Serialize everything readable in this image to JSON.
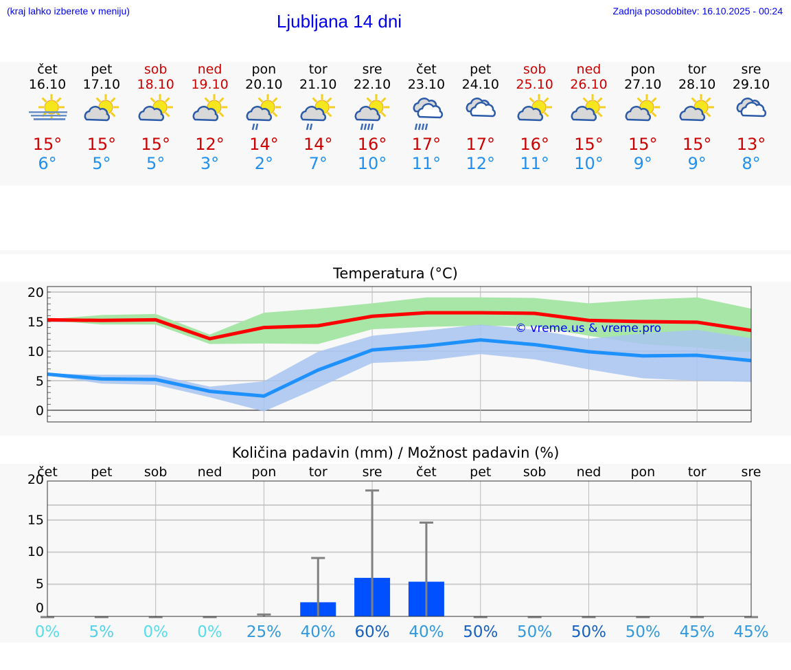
{
  "header": {
    "hint": "(kraj lahko izberete v meniju)",
    "title": "Ljubljana 14 dni",
    "updated": "Zadnja posodobitev: 16.10.2025 - 00:24"
  },
  "colors": {
    "max": "#ff0000",
    "min": "#1e90ff",
    "max_band": "#a8e6a8",
    "min_band": "#a8c4f0",
    "bar": "#0050ff",
    "error": "#808080",
    "weekend": "#cc0000"
  },
  "days": [
    {
      "name": "čet",
      "date": "16.10",
      "icon": "sun-fog-icon",
      "max": "15°",
      "min": "6°",
      "weekend": false
    },
    {
      "name": "pet",
      "date": "17.10",
      "icon": "partly-cloudy-icon",
      "max": "15°",
      "min": "5°",
      "weekend": false
    },
    {
      "name": "sob",
      "date": "18.10",
      "icon": "partly-cloudy-icon",
      "max": "15°",
      "min": "5°",
      "weekend": true
    },
    {
      "name": "ned",
      "date": "19.10",
      "icon": "partly-cloudy-icon",
      "max": "12°",
      "min": "3°",
      "weekend": true
    },
    {
      "name": "pon",
      "date": "20.10",
      "icon": "partly-cloudy-light-rain-icon",
      "max": "14°",
      "min": "2°",
      "weekend": false
    },
    {
      "name": "tor",
      "date": "21.10",
      "icon": "partly-cloudy-light-rain-icon",
      "max": "14°",
      "min": "7°",
      "weekend": false
    },
    {
      "name": "sre",
      "date": "22.10",
      "icon": "partly-cloudy-rain-icon",
      "max": "16°",
      "min": "10°",
      "weekend": false
    },
    {
      "name": "čet",
      "date": "23.10",
      "icon": "cloudy-rain-icon",
      "max": "17°",
      "min": "11°",
      "weekend": false
    },
    {
      "name": "pet",
      "date": "24.10",
      "icon": "cloudy-icon",
      "max": "17°",
      "min": "12°",
      "weekend": false
    },
    {
      "name": "sob",
      "date": "25.10",
      "icon": "partly-cloudy-icon",
      "max": "16°",
      "min": "11°",
      "weekend": true
    },
    {
      "name": "ned",
      "date": "26.10",
      "icon": "partly-cloudy-icon",
      "max": "15°",
      "min": "10°",
      "weekend": true
    },
    {
      "name": "pon",
      "date": "27.10",
      "icon": "partly-cloudy-icon",
      "max": "15°",
      "min": "9°",
      "weekend": false
    },
    {
      "name": "tor",
      "date": "28.10",
      "icon": "partly-cloudy-icon",
      "max": "15°",
      "min": "9°",
      "weekend": false
    },
    {
      "name": "sre",
      "date": "29.10",
      "icon": "cloudy-icon",
      "max": "13°",
      "min": "8°",
      "weekend": false
    }
  ],
  "chart_data": [
    {
      "type": "line",
      "title": "Temperatura (°C)",
      "ylim": [
        -2,
        21
      ],
      "yticks": [
        "0",
        "5",
        "10",
        "15",
        "20"
      ],
      "grid": true,
      "watermark": "© vreme.us & vreme.pro",
      "series": [
        {
          "values": [
            15.3,
            15.2,
            15.3,
            12.1,
            14.0,
            14.3,
            15.9,
            16.5,
            16.5,
            16.4,
            15.2,
            15.0,
            14.9,
            13.5
          ],
          "band_low": [
            15.2,
            14.5,
            14.5,
            11.2,
            11.3,
            11.2,
            13.7,
            14.1,
            14.3,
            14.2,
            12.6,
            11.2,
            10.6,
            9.8
          ],
          "band_high": [
            15.4,
            16.1,
            16.3,
            12.8,
            16.5,
            17.2,
            18.1,
            19.1,
            19.1,
            19.0,
            18.1,
            18.7,
            19.1,
            17.2
          ]
        },
        {
          "values": [
            6.1,
            5.3,
            5.2,
            3.2,
            2.4,
            6.8,
            10.2,
            10.9,
            11.9,
            11.1,
            9.9,
            9.2,
            9.3,
            8.4
          ],
          "band_low": [
            5.9,
            4.5,
            4.3,
            2.2,
            -0.2,
            3.8,
            8.0,
            8.4,
            9.5,
            8.6,
            6.9,
            5.4,
            5.0,
            4.8
          ],
          "band_high": [
            6.2,
            6.0,
            6.0,
            4.0,
            4.9,
            9.9,
            12.6,
            13.5,
            14.5,
            13.6,
            12.1,
            13.0,
            13.6,
            12.2
          ]
        }
      ]
    },
    {
      "type": "bar",
      "title": "Količina padavin (mm) / Možnost padavin (%)",
      "ylim": [
        0,
        21
      ],
      "yticks": [
        "0",
        "5",
        "10",
        "15",
        "20"
      ],
      "grid": true,
      "categories": [
        "čet",
        "pet",
        "sob",
        "ned",
        "pon",
        "tor",
        "sre",
        "čet",
        "pet",
        "sob",
        "ned",
        "pon",
        "tor",
        "sre"
      ],
      "values": [
        0,
        0,
        0,
        0,
        0,
        2.2,
        6.0,
        5.4,
        0,
        0,
        0,
        0,
        0,
        0
      ],
      "error_high": [
        0,
        0,
        0,
        0,
        0.4,
        9.2,
        19.7,
        14.7,
        0,
        0,
        0,
        0,
        0,
        0
      ],
      "probability": [
        "0%",
        "5%",
        "0%",
        "0%",
        "25%",
        "40%",
        "60%",
        "40%",
        "50%",
        "50%",
        "50%",
        "50%",
        "45%",
        "45%"
      ],
      "probability_colors": [
        "#55dde8",
        "#55d0e8",
        "#55dde8",
        "#55dde8",
        "#3399dd",
        "#3399dd",
        "#1560c0",
        "#3399dd",
        "#1560c0",
        "#3399dd",
        "#1560c0",
        "#3399dd",
        "#3399dd",
        "#3399dd"
      ]
    }
  ]
}
